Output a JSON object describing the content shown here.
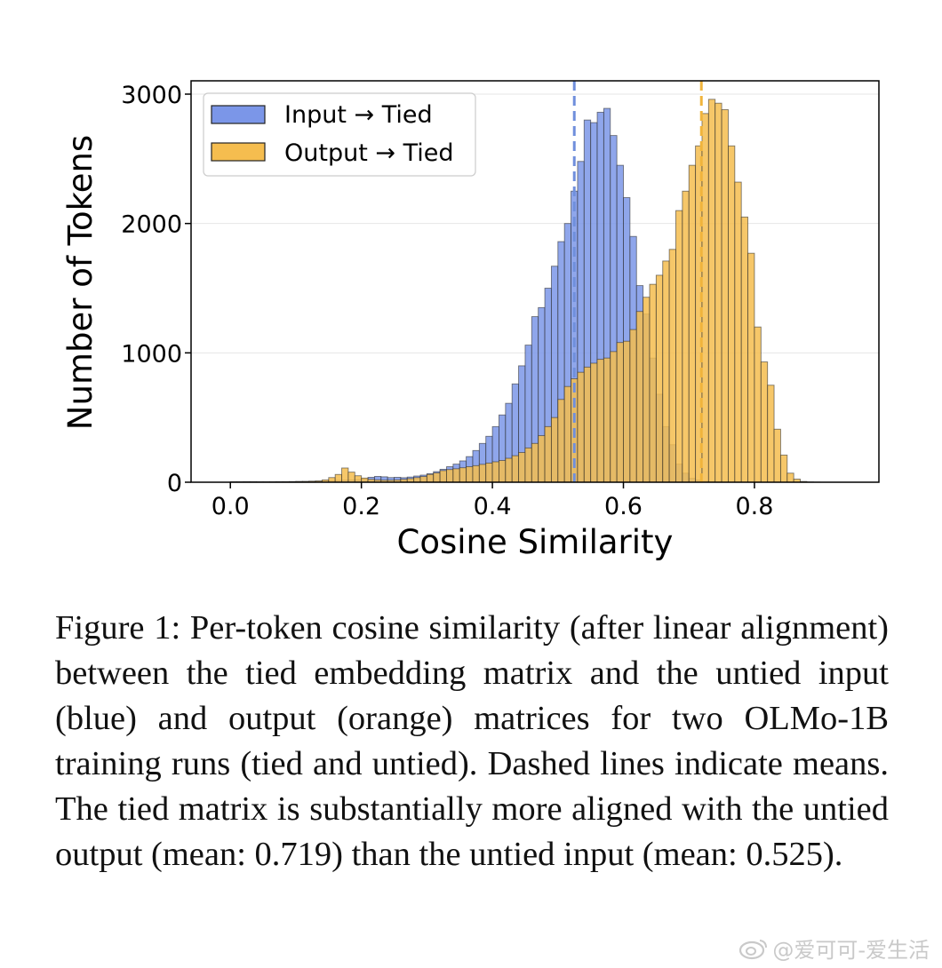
{
  "chart_data": {
    "type": "histogram",
    "title": "",
    "xlabel": "Cosine Similarity",
    "ylabel": "Number of Tokens",
    "xlim": [
      -0.06,
      0.99
    ],
    "ylim": [
      0,
      3000
    ],
    "xticks": [
      "0.0",
      "0.2",
      "0.4",
      "0.6",
      "0.8"
    ],
    "yticks": [
      "0",
      "1000",
      "2000",
      "3000"
    ],
    "legend_position": "top-left",
    "bin_start": 0.0,
    "bin_width": 0.01,
    "series": [
      {
        "name": "Input → Tied",
        "color": "#7b96e8",
        "mean": 0.525,
        "values": [
          3,
          3,
          4,
          4,
          3,
          3,
          3,
          4,
          4,
          5,
          6,
          6,
          7,
          8,
          10,
          12,
          14,
          16,
          18,
          20,
          24,
          38,
          45,
          42,
          36,
          38,
          35,
          40,
          48,
          55,
          66,
          82,
          100,
          120,
          140,
          165,
          198,
          245,
          300,
          355,
          430,
          520,
          610,
          760,
          900,
          1060,
          1280,
          1350,
          1500,
          1670,
          1860,
          2000,
          2250,
          2480,
          2800,
          2780,
          2860,
          2890,
          2680,
          2450,
          2200,
          1900,
          1520,
          1300,
          960,
          680,
          430,
          290,
          140,
          70,
          30,
          16,
          8,
          4,
          2,
          1,
          0,
          0,
          0,
          0,
          0,
          0,
          0,
          0,
          0,
          0,
          0,
          0,
          0,
          0,
          0,
          0,
          0,
          0,
          0
        ]
      },
      {
        "name": "Output → Tied",
        "color": "#f5bd4f",
        "mean": 0.719,
        "values": [
          3,
          3,
          3,
          3,
          3,
          3,
          3,
          3,
          4,
          4,
          5,
          6,
          8,
          10,
          18,
          36,
          60,
          110,
          78,
          50,
          32,
          22,
          18,
          16,
          16,
          18,
          22,
          28,
          36,
          44,
          60,
          72,
          90,
          98,
          104,
          112,
          120,
          128,
          138,
          148,
          158,
          168,
          185,
          205,
          230,
          265,
          300,
          360,
          430,
          500,
          640,
          740,
          800,
          850,
          890,
          920,
          950,
          960,
          1010,
          1080,
          1090,
          1180,
          1320,
          1430,
          1530,
          1600,
          1710,
          1800,
          2100,
          2250,
          2450,
          2600,
          2850,
          2960,
          2930,
          2880,
          2600,
          2320,
          2050,
          1770,
          1200,
          930,
          750,
          410,
          210,
          70,
          24,
          6,
          2,
          1,
          0,
          0,
          0,
          0,
          0
        ]
      }
    ]
  },
  "caption": {
    "text": "Figure 1: Per-token cosine similarity (after linear alignment) between the tied embedding matrix and the untied input (blue) and output (orange) matrices for two OLMo-1B training runs (tied and untied). Dashed lines indicate means. The tied matrix is substantially more aligned with the untied output (mean: 0.719) than the untied input (mean: 0.525)."
  },
  "watermark": {
    "text": "@爱可可-爱生活"
  }
}
